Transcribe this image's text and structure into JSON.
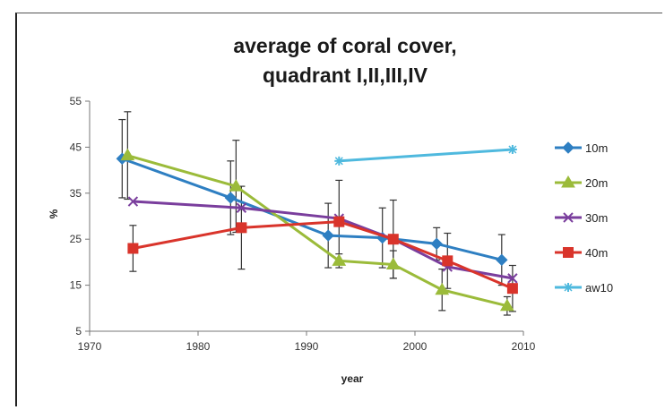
{
  "chart_data": {
    "type": "line",
    "title_lines": [
      "average of coral cover,",
      "quadrant I,II,III,IV"
    ],
    "xlabel": "year",
    "ylabel": "%",
    "xlim": [
      1970,
      2010
    ],
    "ylim": [
      5,
      55
    ],
    "x_ticks": [
      "1970",
      "1980",
      "1990",
      "2000",
      "2010"
    ],
    "y_ticks": [
      "5",
      "15",
      "25",
      "35",
      "45",
      "55"
    ],
    "grid": false,
    "legend_position": "right",
    "series": [
      {
        "name": "10m",
        "color": "#2e7fc2",
        "marker": "diamond",
        "x": [
          1973,
          1983,
          1992,
          1997,
          2002,
          2008
        ],
        "y": [
          42.5,
          34.0,
          25.8,
          25.3,
          24.0,
          20.5
        ],
        "err": [
          8.5,
          8.0,
          7.0,
          6.5,
          3.5,
          5.5
        ]
      },
      {
        "name": "20m",
        "color": "#9bbb3a",
        "marker": "triangle",
        "x": [
          1973.5,
          1983.5,
          1993,
          1998,
          2002.5,
          2008.5
        ],
        "y": [
          43.2,
          36.5,
          20.3,
          19.5,
          14.0,
          10.5
        ],
        "err": [
          9.5,
          10.0,
          1.5,
          3.0,
          4.5,
          2.0
        ]
      },
      {
        "name": "30m",
        "color": "#7a3e9d",
        "marker": "x",
        "x": [
          1974,
          1984,
          1993,
          1998,
          2003,
          2009
        ],
        "y": [
          33.2,
          31.8,
          29.5,
          25.0,
          19.0,
          16.5
        ],
        "err": [
          0,
          0,
          0,
          0,
          0,
          0
        ]
      },
      {
        "name": "40m",
        "color": "#d9342b",
        "marker": "square",
        "x": [
          1974,
          1984,
          1993,
          1998,
          2003,
          2009
        ],
        "y": [
          23.0,
          27.5,
          28.8,
          25.0,
          20.3,
          14.3
        ],
        "err": [
          5.0,
          9.0,
          9.0,
          8.5,
          6.0,
          5.0
        ]
      },
      {
        "name": "aw10",
        "color": "#4fb9de",
        "marker": "star",
        "x": [
          1993,
          2009
        ],
        "y": [
          42.0,
          44.5
        ],
        "err": [
          0,
          0
        ]
      }
    ]
  }
}
